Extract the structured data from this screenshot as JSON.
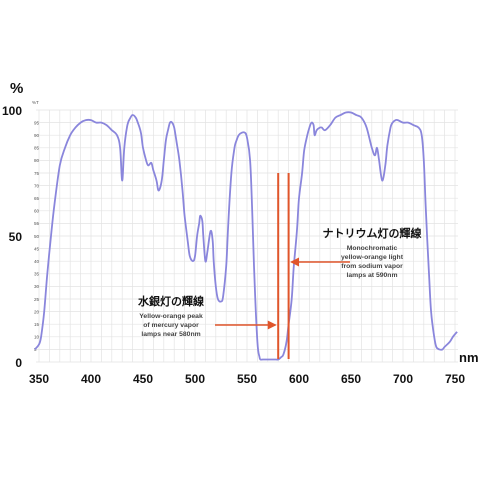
{
  "chart_data": {
    "type": "line",
    "ylabel": "%",
    "xlabel": "nm",
    "xlim": [
      350,
      750
    ],
    "ylim": [
      0,
      100
    ],
    "x_ticks": [
      "350",
      "400",
      "450",
      "500",
      "550",
      "600",
      "650",
      "700",
      "750"
    ],
    "y_ticks": [
      "0",
      "50",
      "100"
    ],
    "y_minor_unit": "%T",
    "y_minor_ticks": [
      "95",
      "90",
      "85",
      "80",
      "75",
      "70",
      "65",
      "60",
      "55",
      "50",
      "45",
      "40",
      "35",
      "30",
      "25",
      "20",
      "15",
      "10",
      "5"
    ],
    "grid": true,
    "line_color": "#8a86dc",
    "marker_color": "#e0552b",
    "series": [
      {
        "x": [
          346,
          350,
          352,
          355,
          358,
          362,
          365,
          370,
          375,
          380,
          385,
          390,
          395,
          400,
          405,
          410,
          415,
          420,
          425,
          428,
          430,
          432,
          435,
          438,
          440,
          443,
          445,
          448,
          450,
          453,
          455,
          458,
          460,
          463,
          465,
          468,
          470,
          472,
          474,
          476,
          478,
          480,
          482,
          485,
          488,
          490,
          493,
          495,
          498,
          500,
          502,
          504,
          505,
          507,
          508,
          510,
          512,
          515,
          517,
          518,
          520,
          522,
          525,
          527,
          530,
          532,
          535,
          538,
          540,
          542,
          545,
          548,
          550,
          553,
          555,
          557,
          560,
          562,
          563,
          565,
          567,
          570,
          573,
          575,
          578,
          580,
          583,
          585,
          588,
          590,
          593,
          595,
          598,
          600,
          603,
          605,
          608,
          610,
          612,
          614,
          615,
          617,
          620,
          622,
          625,
          630,
          635,
          640,
          645,
          650,
          655,
          660,
          665,
          670,
          673,
          675,
          677,
          680,
          683,
          685,
          688,
          690,
          693,
          695,
          700,
          705,
          710,
          715,
          718,
          720,
          722,
          725,
          727,
          730,
          732,
          735,
          738,
          740,
          745,
          748,
          752
        ],
        "y": [
          5,
          7,
          10,
          20,
          35,
          52,
          63,
          78,
          85,
          90,
          93,
          95,
          96,
          96,
          95,
          95,
          94,
          92,
          90,
          85,
          72,
          85,
          94,
          97,
          98,
          97,
          95,
          91,
          85,
          80,
          78,
          79,
          76,
          72,
          68,
          72,
          80,
          88,
          92,
          95,
          95,
          93,
          88,
          80,
          68,
          58,
          48,
          42,
          40,
          42,
          50,
          55,
          58,
          56,
          50,
          40,
          44,
          52,
          48,
          40,
          30,
          25,
          24,
          26,
          38,
          55,
          75,
          85,
          88,
          90,
          91,
          91,
          89,
          80,
          60,
          35,
          8,
          2,
          1,
          1,
          1,
          1,
          1,
          1,
          1,
          1,
          2,
          3,
          8,
          15,
          25,
          38,
          52,
          65,
          75,
          84,
          90,
          93,
          95,
          94,
          90,
          92,
          93,
          93,
          92,
          94,
          97,
          98,
          99,
          99,
          98,
          97,
          93,
          85,
          82,
          85,
          80,
          72,
          78,
          86,
          93,
          95,
          96,
          96,
          95,
          95,
          94,
          93,
          90,
          80,
          60,
          35,
          20,
          10,
          6,
          5,
          5,
          6,
          8,
          10,
          12
        ]
      }
    ],
    "markers": [
      {
        "x": 580,
        "label_jp": "水銀灯の輝線",
        "label_en": [
          "Yellow-orange peak",
          "of mercury vapor",
          "lamps near 580nm"
        ]
      },
      {
        "x": 590,
        "label_jp": "ナトリウム灯の輝線",
        "label_en": [
          "Monochromatic",
          "yellow-orange light",
          "from sodium vapor",
          "lamps at 590nm"
        ]
      }
    ]
  }
}
